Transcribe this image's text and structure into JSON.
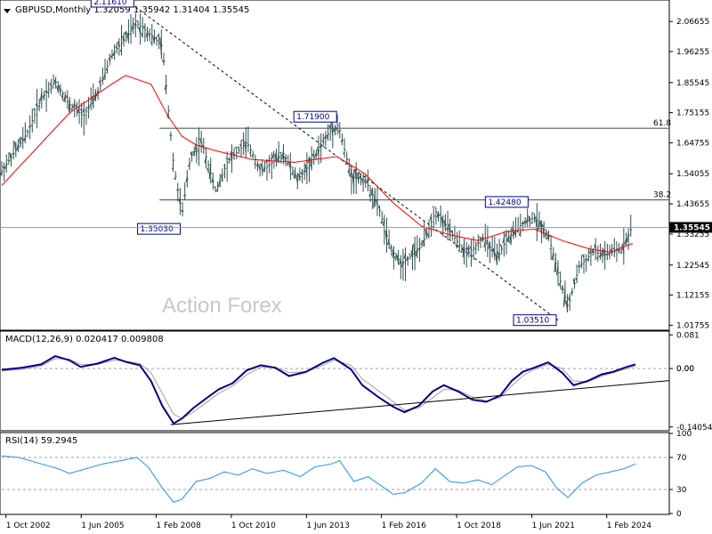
{
  "chart_data": [
    {
      "type": "ohlc",
      "title": "GBPUSD,Monthly  1.32059 1.35942 1.31404 1.35545",
      "watermark": "Action Forex",
      "yaxis": {
        "ylim": [
          1.0035,
          2.1375
        ],
        "ticks": [
          "2.06655",
          "1.96255",
          "1.85545",
          "1.75155",
          "1.64755",
          "1.54055",
          "1.43655",
          "1.33255",
          "1.22545",
          "1.12155",
          "1.01755"
        ]
      },
      "current_price": "1.35545",
      "price_labels": [
        {
          "text": "2.11610",
          "x": 2007.35,
          "y": 2.1161
        },
        {
          "text": "1.71900",
          "x": 2014.55,
          "y": 1.719
        },
        {
          "text": "1.35030",
          "x": 2009.0,
          "y": 1.3503
        },
        {
          "text": "1.42480",
          "x": 2021.35,
          "y": 1.4248
        },
        {
          "text": "1.03510",
          "x": 2022.35,
          "y": 1.0351
        }
      ],
      "fib_levels": [
        {
          "label": "61.8",
          "value": 1.6977
        },
        {
          "label": "38.2",
          "value": 1.4501
        }
      ],
      "trendlines": [
        {
          "name": "down-channel",
          "style": "dashed",
          "x": [
            2007.35,
            2022.35
          ],
          "y": [
            2.1161,
            1.0351
          ]
        }
      ],
      "moving_average": {
        "color": "#ff0000",
        "x": [
          2002.6,
          2005.0,
          2006.5,
          2007.0,
          2007.9,
          2008.5,
          2009.0,
          2009.5,
          2010.2,
          2011.5,
          2013.0,
          2014.5,
          2015.5,
          2016.5,
          2017.5,
          2018.5,
          2019.5,
          2020.5,
          2021.5,
          2022.5,
          2023.5,
          2024.2,
          2025.0
        ],
        "y": [
          1.5,
          1.75,
          1.85,
          1.88,
          1.85,
          1.74,
          1.67,
          1.64,
          1.62,
          1.59,
          1.58,
          1.6,
          1.54,
          1.44,
          1.36,
          1.33,
          1.31,
          1.34,
          1.35,
          1.31,
          1.28,
          1.27,
          1.3
        ]
      },
      "price_series": {
        "color": "#2f4f4f",
        "x": [
          2002.6,
          2003.5,
          2004.0,
          2004.5,
          2005.0,
          2005.5,
          2006.0,
          2006.5,
          2007.0,
          2007.4,
          2007.9,
          2008.3,
          2008.7,
          2009.0,
          2009.3,
          2009.7,
          2010.2,
          2010.6,
          2011.3,
          2011.8,
          2012.6,
          2013.1,
          2013.6,
          2014.2,
          2014.55,
          2015.0,
          2015.5,
          2016.0,
          2016.4,
          2016.8,
          2017.5,
          2018.0,
          2018.6,
          2019.1,
          2019.7,
          2020.2,
          2020.5,
          2021.1,
          2021.5,
          2022.0,
          2022.4,
          2022.7,
          2023.1,
          2023.6,
          2024.0,
          2024.6,
          2025.0
        ],
        "y": [
          1.55,
          1.68,
          1.8,
          1.86,
          1.78,
          1.74,
          1.82,
          1.95,
          2.01,
          2.06,
          2.02,
          1.98,
          1.57,
          1.4,
          1.6,
          1.65,
          1.48,
          1.58,
          1.65,
          1.55,
          1.61,
          1.52,
          1.58,
          1.68,
          1.71,
          1.53,
          1.52,
          1.42,
          1.28,
          1.23,
          1.29,
          1.41,
          1.33,
          1.26,
          1.32,
          1.25,
          1.31,
          1.37,
          1.39,
          1.33,
          1.18,
          1.08,
          1.22,
          1.27,
          1.26,
          1.28,
          1.36
        ]
      }
    },
    {
      "type": "line",
      "title": "MACD(12,26,9) 0.020417 0.009808",
      "yaxis": {
        "ticks": [
          "0.081",
          "0.00",
          "-0.140543"
        ],
        "ylim": [
          -0.1475,
          0.088
        ]
      },
      "zero_label": "0.00",
      "series": [
        {
          "color": "#00008b",
          "x": [
            2002.6,
            2003.3,
            2004.0,
            2004.5,
            2005.0,
            2005.4,
            2006.0,
            2006.6,
            2007.0,
            2007.5,
            2007.9,
            2008.3,
            2008.7,
            2009.0,
            2009.4,
            2009.8,
            2010.3,
            2010.8,
            2011.3,
            2011.8,
            2012.3,
            2012.8,
            2013.4,
            2014.0,
            2014.4,
            2015.0,
            2015.4,
            2016.0,
            2016.5,
            2016.9,
            2017.4,
            2017.9,
            2018.3,
            2018.8,
            2019.3,
            2019.8,
            2020.3,
            2020.7,
            2021.1,
            2021.5,
            2022.0,
            2022.5,
            2022.9,
            2023.4,
            2023.9,
            2024.3,
            2024.8,
            2025.1
          ],
          "y": [
            -0.003,
            0.002,
            0.01,
            0.03,
            0.02,
            0.004,
            0.012,
            0.026,
            0.016,
            0.008,
            -0.03,
            -0.09,
            -0.132,
            -0.12,
            -0.095,
            -0.075,
            -0.05,
            -0.035,
            -0.004,
            0.008,
            0.002,
            -0.018,
            -0.008,
            0.014,
            0.025,
            -0.002,
            -0.04,
            -0.07,
            -0.092,
            -0.105,
            -0.09,
            -0.055,
            -0.04,
            -0.055,
            -0.075,
            -0.08,
            -0.065,
            -0.03,
            -0.008,
            0.002,
            0.015,
            -0.01,
            -0.04,
            -0.03,
            -0.014,
            -0.008,
            0.004,
            0.01
          ]
        },
        {
          "color": "#a0a0a0",
          "x": [
            2002.6,
            2003.3,
            2004.0,
            2004.5,
            2005.0,
            2005.4,
            2006.0,
            2006.6,
            2007.0,
            2007.5,
            2007.9,
            2008.3,
            2008.7,
            2009.0,
            2009.4,
            2009.8,
            2010.3,
            2010.8,
            2011.3,
            2011.8,
            2012.3,
            2012.8,
            2013.4,
            2014.0,
            2014.4,
            2015.0,
            2015.4,
            2016.0,
            2016.5,
            2016.9,
            2017.4,
            2017.9,
            2018.3,
            2018.8,
            2019.3,
            2019.8,
            2020.3,
            2020.7,
            2021.1,
            2021.5,
            2022.0,
            2022.5,
            2022.9,
            2023.4,
            2023.9,
            2024.3,
            2024.8,
            2025.1
          ],
          "y": [
            -0.006,
            -0.002,
            0.006,
            0.024,
            0.022,
            0.01,
            0.01,
            0.02,
            0.018,
            0.012,
            -0.01,
            -0.06,
            -0.11,
            -0.12,
            -0.105,
            -0.085,
            -0.06,
            -0.042,
            -0.015,
            0.003,
            0.004,
            -0.01,
            -0.008,
            0.008,
            0.02,
            0.008,
            -0.025,
            -0.055,
            -0.08,
            -0.1,
            -0.095,
            -0.07,
            -0.05,
            -0.052,
            -0.068,
            -0.078,
            -0.07,
            -0.042,
            -0.018,
            -0.002,
            0.01,
            0.0,
            -0.03,
            -0.032,
            -0.018,
            -0.01,
            0.0,
            0.006
          ]
        }
      ],
      "trendlines": [
        {
          "name": "macd-support",
          "x": [
            2008.6,
            2026.3
          ],
          "y": [
            -0.135,
            -0.029
          ]
        }
      ]
    },
    {
      "type": "line",
      "title": "RSI(14) 59.2945",
      "yaxis": {
        "ticks": [
          "100",
          "70",
          "30",
          "0"
        ],
        "ylim": [
          0,
          100
        ]
      },
      "levels": [
        70,
        30
      ],
      "series": [
        {
          "color": "#1e90ff",
          "x": [
            2002.6,
            2003.2,
            2004.0,
            2004.6,
            2005.0,
            2005.6,
            2006.2,
            2006.8,
            2007.4,
            2007.8,
            2008.3,
            2008.7,
            2009.0,
            2009.5,
            2010.0,
            2010.5,
            2011.0,
            2011.5,
            2012.0,
            2012.6,
            2013.2,
            2013.7,
            2014.3,
            2014.6,
            2015.1,
            2015.6,
            2016.1,
            2016.5,
            2016.9,
            2017.5,
            2018.0,
            2018.5,
            2019.0,
            2019.5,
            2020.0,
            2020.4,
            2020.9,
            2021.4,
            2021.9,
            2022.3,
            2022.7,
            2023.2,
            2023.7,
            2024.2,
            2024.7,
            2025.1
          ],
          "y": [
            72,
            70,
            62,
            56,
            50,
            56,
            62,
            66,
            70,
            58,
            32,
            14,
            18,
            40,
            44,
            52,
            48,
            56,
            50,
            54,
            46,
            58,
            62,
            66,
            40,
            46,
            34,
            24,
            26,
            38,
            56,
            40,
            38,
            42,
            36,
            46,
            58,
            60,
            52,
            32,
            20,
            38,
            48,
            52,
            56,
            62
          ]
        }
      ]
    },
    {
      "type": "axis",
      "ticks": [
        "1 Oct 2002",
        "1 Jun 2005",
        "1 Feb 2008",
        "1 Oct 2010",
        "1 Jun 2013",
        "1 Feb 2016",
        "1 Oct 2018",
        "1 Jun 2021",
        "1 Feb 2024"
      ],
      "tick_values": [
        2002.75,
        2005.42,
        2008.08,
        2010.75,
        2013.42,
        2016.08,
        2018.75,
        2021.42,
        2024.08
      ]
    }
  ]
}
